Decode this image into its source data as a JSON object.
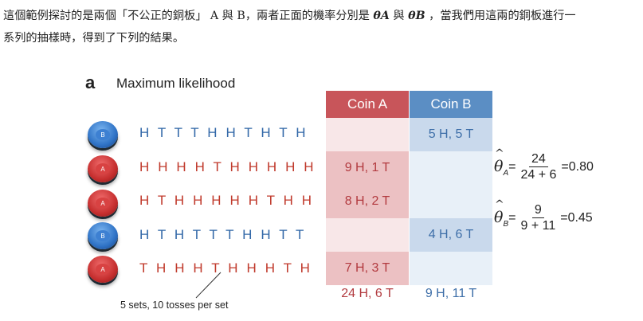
{
  "intro": {
    "line1_a": "這個範例探討的是兩個「不公正的銅板」",
    "coin_a_letter": "A",
    "and1": "與",
    "coin_b_letter": "B",
    "line1_b": "，兩者正面的機率分別是",
    "theta_a": "θA",
    "and2": "與",
    "theta_b": "θB",
    "line1_c": "，當我們用這兩的銅板進行一",
    "line2": "系列的抽樣時，得到了下列的結果。"
  },
  "figure": {
    "panel_letter": "a",
    "panel_title": "Maximum likelihood",
    "col_a": "Coin A",
    "col_b": "Coin B",
    "rows": [
      {
        "coin": "B",
        "seq": "H T T T H H T H T H",
        "a": "",
        "b": "5 H, 5 T"
      },
      {
        "coin": "A",
        "seq": "H H H H T H H H H H",
        "a": "9 H, 1 T",
        "b": ""
      },
      {
        "coin": "A",
        "seq": "H T H H H H H T H H",
        "a": "8 H, 2 T",
        "b": ""
      },
      {
        "coin": "B",
        "seq": "H T H T T T H H T T",
        "a": "",
        "b": "4 H, 6 T"
      },
      {
        "coin": "A",
        "seq": "T H H H T H H H T H",
        "a": "7 H, 3 T",
        "b": ""
      }
    ],
    "total_a": "24 H, 6 T",
    "total_b": "9 H, 11 T",
    "annotation": "5 sets, 10 tosses per set",
    "eq_a": {
      "theta": "θ",
      "hat": "^",
      "sub": "A",
      "eq": "=",
      "num": "24",
      "den": "24 + 6",
      "result": "=0.80"
    },
    "eq_b": {
      "theta": "θ",
      "hat": "^",
      "sub": "B",
      "eq": "=",
      "num": "9",
      "den": "9 + 11",
      "result": "=0.45"
    }
  },
  "colors": {
    "coin_a": "#c8555a",
    "coin_b": "#5b8ec4",
    "seq_a": "#c0392b",
    "seq_b": "#3268a8"
  }
}
